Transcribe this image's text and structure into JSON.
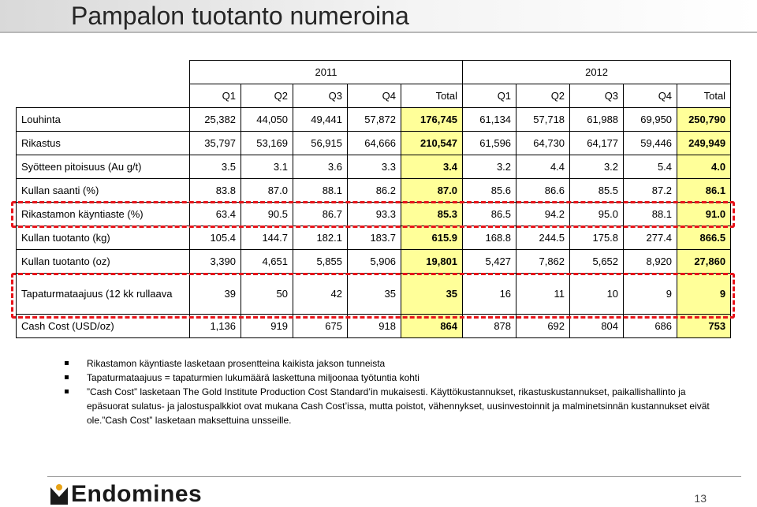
{
  "title": "Pampalon tuotanto numeroina",
  "years": [
    "2011",
    "2012"
  ],
  "quarters": [
    "Q1",
    "Q2",
    "Q3",
    "Q4",
    "Total",
    "Q1",
    "Q2",
    "Q3",
    "Q4",
    "Total"
  ],
  "rows": [
    {
      "label": "Louhinta",
      "values": [
        "25,382",
        "44,050",
        "49,441",
        "57,872",
        "176,745",
        "61,134",
        "57,718",
        "61,988",
        "69,950",
        "250,790"
      ]
    },
    {
      "label": "Rikastus",
      "values": [
        "35,797",
        "53,169",
        "56,915",
        "64,666",
        "210,547",
        "61,596",
        "64,730",
        "64,177",
        "59,446",
        "249,949"
      ]
    },
    {
      "label": "Syötteen pitoisuus (Au g/t)",
      "values": [
        "3.5",
        "3.1",
        "3.6",
        "3.3",
        "3.4",
        "3.2",
        "4.4",
        "3.2",
        "5.4",
        "4.0"
      ]
    },
    {
      "label": "Kullan saanti (%)",
      "values": [
        "83.8",
        "87.0",
        "88.1",
        "86.2",
        "87.0",
        "85.6",
        "86.6",
        "85.5",
        "87.2",
        "86.1"
      ]
    },
    {
      "label": "Rikastamon käyntiaste (%)",
      "values": [
        "63.4",
        "90.5",
        "86.7",
        "93.3",
        "85.3",
        "86.5",
        "94.2",
        "95.0",
        "88.1",
        "91.0"
      ]
    },
    {
      "label": "Kullan tuotanto (kg)",
      "values": [
        "105.4",
        "144.7",
        "182.1",
        "183.7",
        "615.9",
        "168.8",
        "244.5",
        "175.8",
        "277.4",
        "866.5"
      ]
    },
    {
      "label": "Kullan tuotanto (oz)",
      "values": [
        "3,390",
        "4,651",
        "5,855",
        "5,906",
        "19,801",
        "5,427",
        "7,862",
        "5,652",
        "8,920",
        "27,860"
      ]
    },
    {
      "label": "Tapaturmataajuus  (12 kk rullaava",
      "values": [
        "39",
        "50",
        "42",
        "35",
        "35",
        "16",
        "11",
        "10",
        "9",
        "9"
      ]
    },
    {
      "label": "Cash Cost (USD/oz)",
      "values": [
        "1,136",
        "919",
        "675",
        "918",
        "864",
        "878",
        "692",
        "804",
        "686",
        "753"
      ]
    }
  ],
  "notes": [
    "Rikastamon käyntiaste lasketaan prosentteina kaikista jakson tunneista",
    "Tapaturmataajuus = tapaturmien lukumäärä laskettuna miljoonaa työtuntia kohti",
    "”Cash Cost” lasketaan The Gold Institute Production Cost Standard’in mukaisesti. Käyttökustannukset, rikastuskustannukset, paikallishallinto ja epäsuorat sulatus- ja jalostuspalkkiot ovat mukana Cash Cost’issa, mutta poistot, vähennykset, uusinvestoinnit ja malminetsinnän kustannukset eivät ole.”Cash Cost” lasketaan maksettuina unsseille."
  ],
  "footer": {
    "logo_text": "Endomines",
    "page_number": "13"
  },
  "colors": {
    "total_highlight": "#ffff99",
    "dash_red": "#e8141a"
  }
}
